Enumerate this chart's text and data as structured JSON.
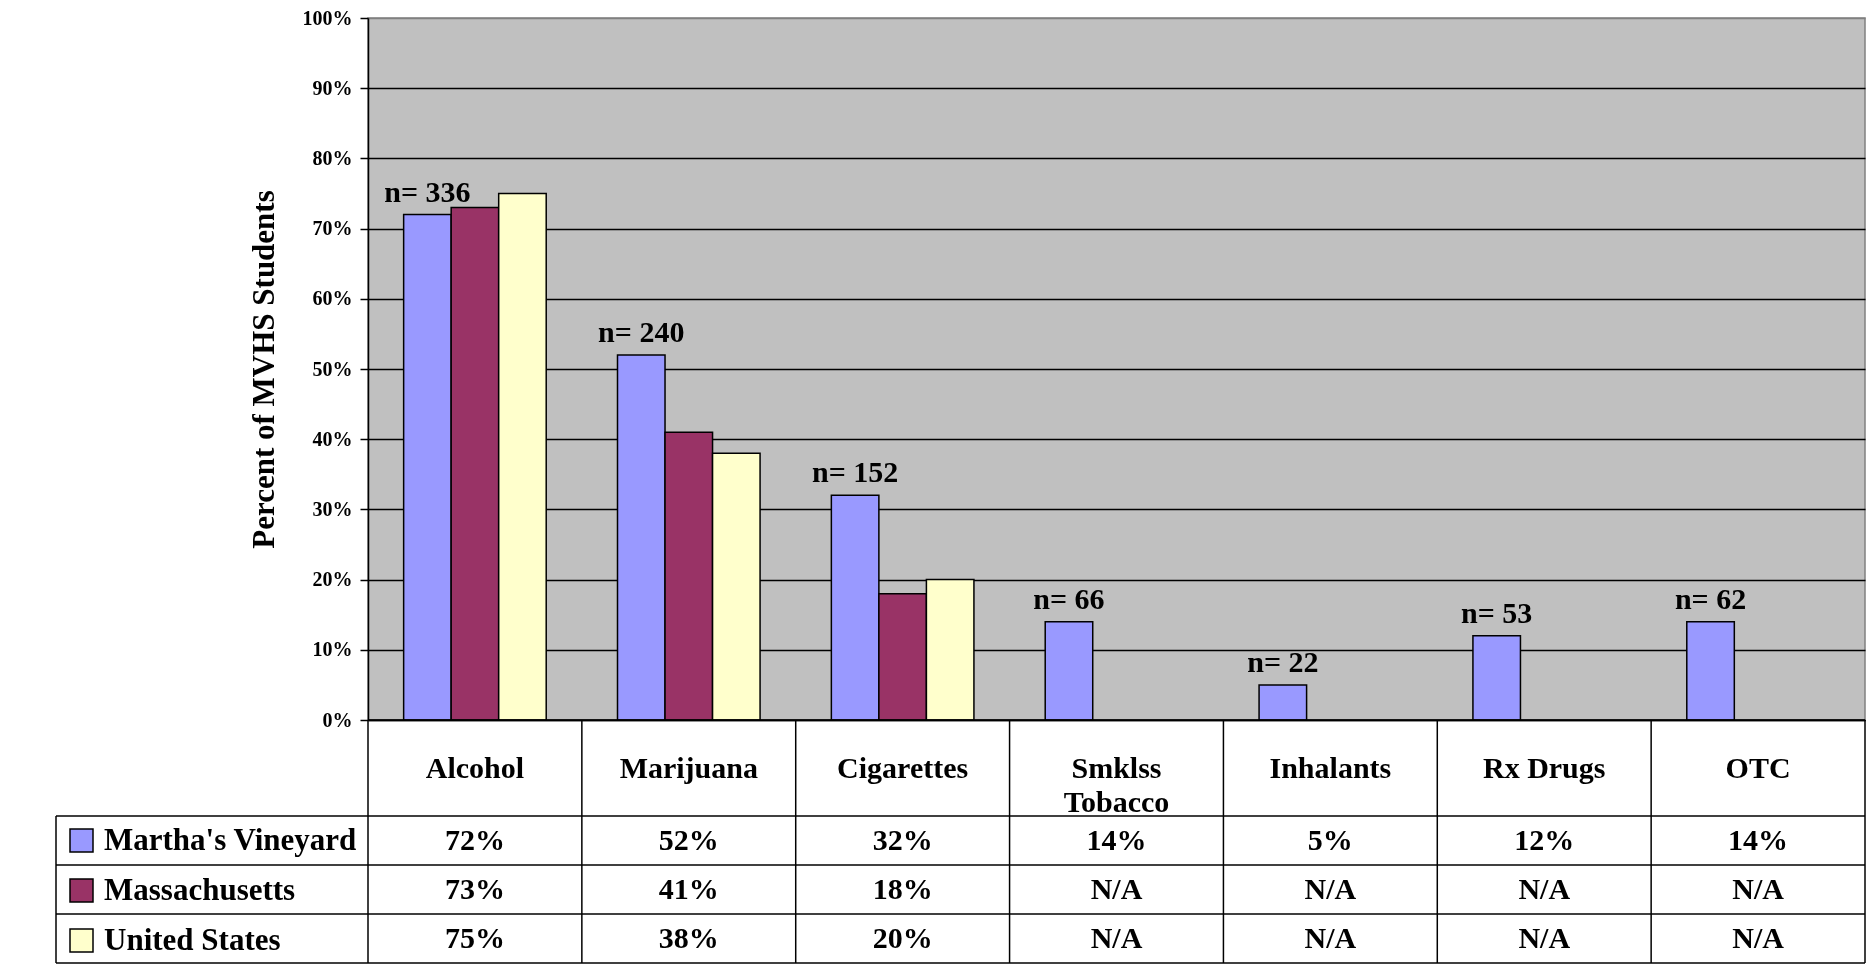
{
  "chart_data": {
    "type": "bar",
    "ylabel": "Percent of MVHS Students",
    "categories": [
      "Alcohol",
      "Marijuana",
      "Cigarettes",
      "Smklss Tobacco",
      "Inhalants",
      "Rx Drugs",
      "OTC"
    ],
    "series": [
      {
        "name": "Martha's Vineyard",
        "color": "#9999ff",
        "values": [
          72,
          52,
          32,
          14,
          5,
          12,
          14
        ],
        "value_labels": [
          "72%",
          "52%",
          "32%",
          "14%",
          "5%",
          "12%",
          "14%"
        ]
      },
      {
        "name": "Massachusetts",
        "color": "#993366",
        "values": [
          73,
          41,
          18,
          null,
          null,
          null,
          null
        ],
        "value_labels": [
          "73%",
          "41%",
          "18%",
          "N/A",
          "N/A",
          "N/A",
          "N/A"
        ]
      },
      {
        "name": "United States",
        "color": "#ffffcc",
        "values": [
          75,
          38,
          20,
          null,
          null,
          null,
          null
        ],
        "value_labels": [
          "75%",
          "38%",
          "20%",
          "N/A",
          "N/A",
          "N/A",
          "N/A"
        ]
      }
    ],
    "ylim": [
      0,
      100
    ],
    "yticks": [
      {
        "value": 0,
        "label": "0%"
      },
      {
        "value": 10,
        "label": "10%"
      },
      {
        "value": 20,
        "label": "20%"
      },
      {
        "value": 30,
        "label": "30%"
      },
      {
        "value": 40,
        "label": "40%"
      },
      {
        "value": 50,
        "label": "50%"
      },
      {
        "value": 60,
        "label": "60%"
      },
      {
        "value": 70,
        "label": "70%"
      },
      {
        "value": 80,
        "label": "80%"
      },
      {
        "value": 90,
        "label": "90%"
      },
      {
        "value": 100,
        "label": "100%"
      }
    ],
    "grid": "y",
    "legend": "bottom left",
    "annotations": [
      "n= 336",
      "n= 240",
      "n= 152",
      "n= 66",
      "n= 22",
      "n= 53",
      "n= 62"
    ]
  }
}
